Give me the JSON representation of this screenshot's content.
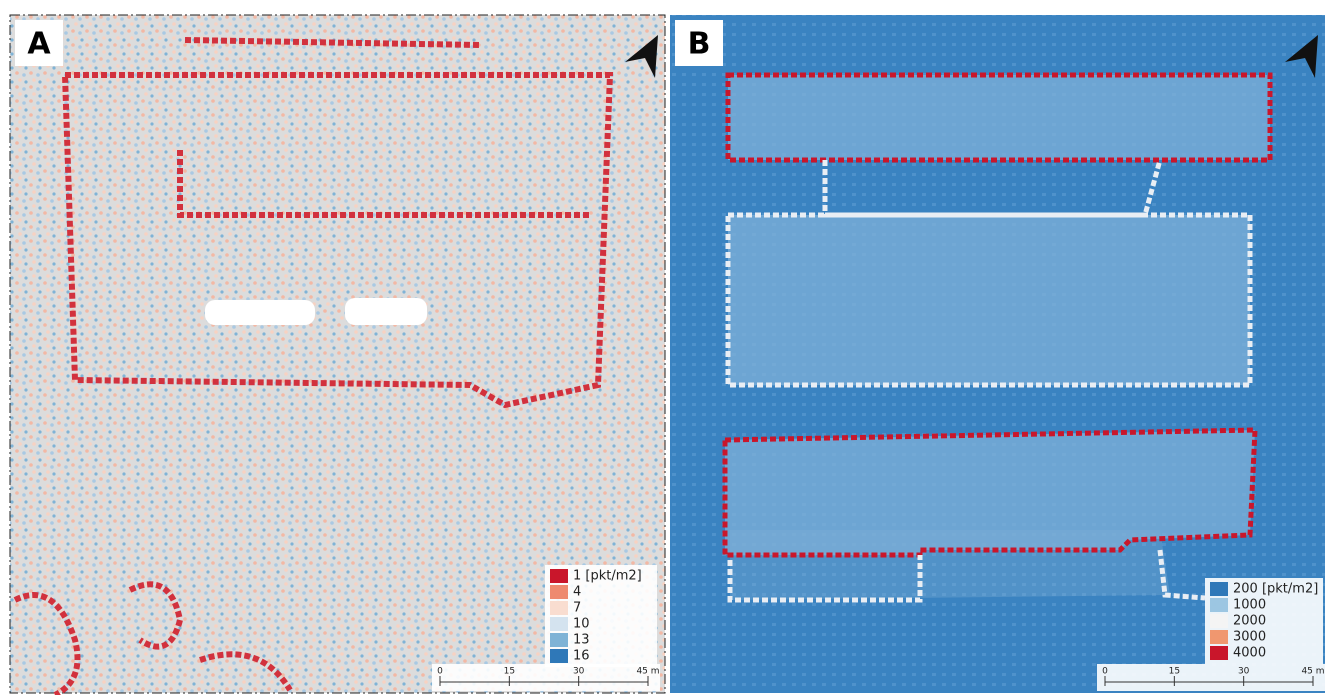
{
  "panels": [
    {
      "label": "A",
      "legend": [
        {
          "label": "1 [pkt/m2]",
          "color": "#c9162b"
        },
        {
          "label": "4",
          "color": "#ee8a6f"
        },
        {
          "label": "7",
          "color": "#f9ddd0"
        },
        {
          "label": "10",
          "color": "#d4e3ef"
        },
        {
          "label": "13",
          "color": "#7fb3d6"
        },
        {
          "label": "16",
          "color": "#2f78b8"
        }
      ],
      "scale": [
        "0",
        "15",
        "30",
        "45 m"
      ]
    },
    {
      "label": "B",
      "legend": [
        {
          "label": "200 [pkt/m2]",
          "color": "#2f78b8"
        },
        {
          "label": "1000",
          "color": "#9cc6e2"
        },
        {
          "label": "2000",
          "color": "#f4f4f4"
        },
        {
          "label": "3000",
          "color": "#f0976f"
        },
        {
          "label": "4000",
          "color": "#c9162b"
        }
      ],
      "scale": [
        "0",
        "15",
        "30",
        "45 m"
      ]
    }
  ]
}
